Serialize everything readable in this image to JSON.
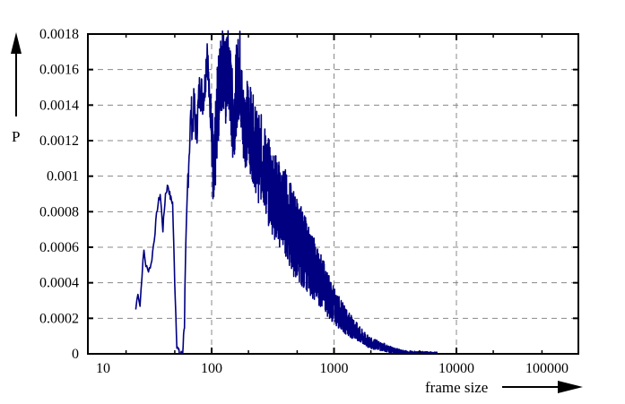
{
  "chart_data": {
    "type": "line",
    "title": "",
    "xlabel": "frame size",
    "ylabel": "P",
    "xscale": "log",
    "xlim": [
      10,
      100000
    ],
    "ylim": [
      0,
      0.0018
    ],
    "grid": true,
    "grid_style": "dashed gray, major x and y",
    "legend": null,
    "series_color": "#000080",
    "x_ticks": [
      "10",
      "100",
      "1000",
      "10000",
      "100000"
    ],
    "y_ticks": [
      "0",
      "0.0002",
      "0.0004",
      "0.0006",
      "0.0008",
      "0.001",
      "0.0012",
      "0.0014",
      "0.0016",
      "0.0018"
    ],
    "series": [
      {
        "name": "P(frame size)",
        "x": [
          24,
          25,
          26,
          27,
          28,
          29,
          30,
          32,
          34,
          36,
          38,
          40,
          42,
          44,
          46,
          48,
          50,
          52,
          54,
          56,
          58,
          60,
          62,
          64,
          66,
          68,
          70,
          72,
          75,
          78,
          80,
          84,
          88,
          92,
          96,
          100,
          104,
          108,
          112,
          116,
          120,
          125,
          130,
          135,
          140,
          150,
          160,
          170,
          180,
          200,
          220,
          240,
          260,
          280,
          300,
          350,
          400,
          450,
          500,
          600,
          700,
          800,
          900,
          1000,
          1200,
          1400,
          1600,
          1800,
          2000,
          2500,
          3000,
          3500,
          4000,
          5000,
          6000,
          7000
        ],
        "y": [
          0.00025,
          0.00035,
          0.00027,
          0.00045,
          0.00058,
          0.0005,
          0.00047,
          0.0005,
          0.00065,
          0.00082,
          0.0009,
          0.0007,
          0.0009,
          0.00095,
          0.00088,
          0.00085,
          0.0004,
          5e-05,
          1e-05,
          0.0,
          0.0,
          0.0002,
          0.0006,
          0.001,
          0.0012,
          0.00135,
          0.0013,
          0.0014,
          0.00125,
          0.0014,
          0.0015,
          0.00145,
          0.0015,
          0.00175,
          0.0014,
          0.00135,
          0.0009,
          0.0012,
          0.0014,
          0.0015,
          0.0016,
          0.00163,
          0.0015,
          0.0016,
          0.00155,
          0.0013,
          0.0015,
          0.0016,
          0.0013,
          0.0013,
          0.0012,
          0.0011,
          0.0011,
          0.001,
          0.00095,
          0.00085,
          0.0008,
          0.0007,
          0.00065,
          0.00055,
          0.00047,
          0.0004,
          0.00033,
          0.00027,
          0.0002,
          0.00015,
          0.00011,
          8e-05,
          6e-05,
          4e-05,
          2e-05,
          1e-05,
          5e-06,
          3e-06,
          1e-06,
          0.0
        ]
      }
    ]
  }
}
